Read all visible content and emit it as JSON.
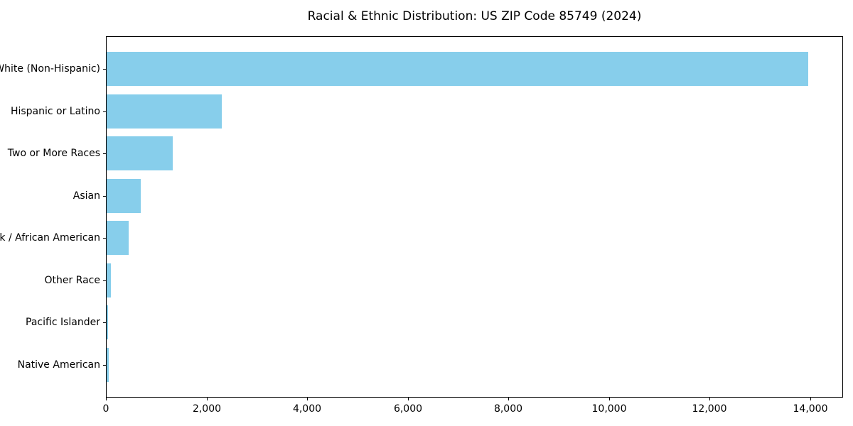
{
  "chart_data": {
    "type": "bar",
    "orientation": "horizontal",
    "title": "Racial & Ethnic Distribution: US ZIP Code 85749 (2024)",
    "xlabel": "",
    "ylabel": "",
    "categories": [
      "White (Non-Hispanic)",
      "Hispanic or Latino",
      "Two or More Races",
      "Asian",
      "Black / African American",
      "Other Race",
      "Pacific Islander",
      "Native American"
    ],
    "values": [
      13950,
      2290,
      1310,
      680,
      440,
      85,
      35,
      45
    ],
    "xlim": [
      0,
      14650
    ],
    "xticks": [
      0,
      2000,
      4000,
      6000,
      8000,
      10000,
      12000,
      14000
    ],
    "xtick_labels": [
      "0",
      "2,000",
      "4,000",
      "6,000",
      "8,000",
      "10,000",
      "12,000",
      "14,000"
    ],
    "bar_color": "#87CEEB",
    "axis_color": "#000000",
    "grid": false,
    "legend": null
  }
}
